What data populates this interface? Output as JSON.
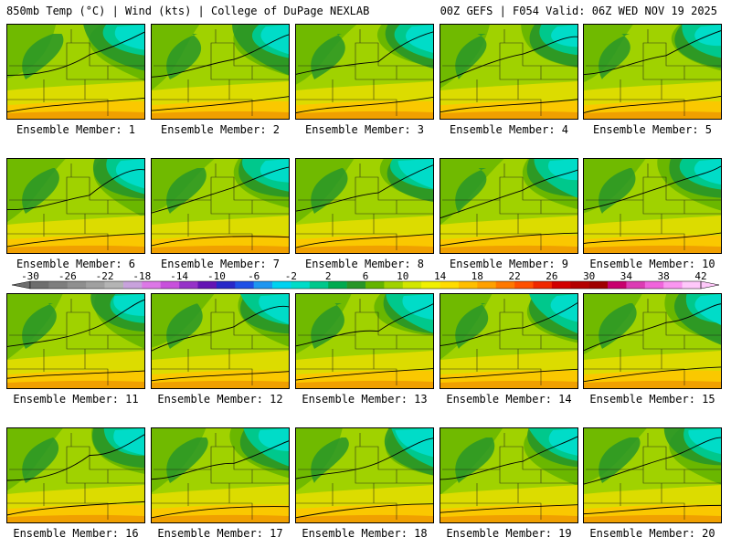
{
  "header": {
    "left": "850mb Temp (°C) | Wind (kts) | College of DuPage NEXLAB",
    "right": "00Z GEFS | F054 Valid: 06Z WED NOV 19 2025"
  },
  "members": [
    "Ensemble Member: 1",
    "Ensemble Member: 2",
    "Ensemble Member: 3",
    "Ensemble Member: 4",
    "Ensemble Member: 5",
    "Ensemble Member: 6",
    "Ensemble Member: 7",
    "Ensemble Member: 8",
    "Ensemble Member: 9",
    "Ensemble Member: 10",
    "Ensemble Member: 11",
    "Ensemble Member: 12",
    "Ensemble Member: 13",
    "Ensemble Member: 14",
    "Ensemble Member: 15",
    "Ensemble Member: 16",
    "Ensemble Member: 17",
    "Ensemble Member: 18",
    "Ensemble Member: 19",
    "Ensemble Member: 20"
  ],
  "colorbar": {
    "labels": [
      "-30",
      "-26",
      "-22",
      "-18",
      "-14",
      "-10",
      "-6",
      "-2",
      "2",
      "6",
      "10",
      "14",
      "18",
      "22",
      "26",
      "30",
      "34",
      "38",
      "42"
    ],
    "colors": [
      "#6e6e6e",
      "#7e7e7e",
      "#8f8f8f",
      "#a0a0a0",
      "#b4b4b4",
      "#c8a2dc",
      "#dc78e6",
      "#c850dc",
      "#9632c8",
      "#6414b4",
      "#2828c8",
      "#1e50e6",
      "#1e96f0",
      "#00d2f0",
      "#00dcc8",
      "#00c88c",
      "#00aa50",
      "#289628",
      "#64b400",
      "#a0d200",
      "#d2e600",
      "#f0f000",
      "#ffdc00",
      "#ffbe00",
      "#ffa000",
      "#ff7800",
      "#ff5000",
      "#f02800",
      "#d20000",
      "#b40000",
      "#a00000",
      "#c8006e",
      "#dc3cb4",
      "#f064dc",
      "#fa96f0",
      "#ffc8fa"
    ]
  }
}
